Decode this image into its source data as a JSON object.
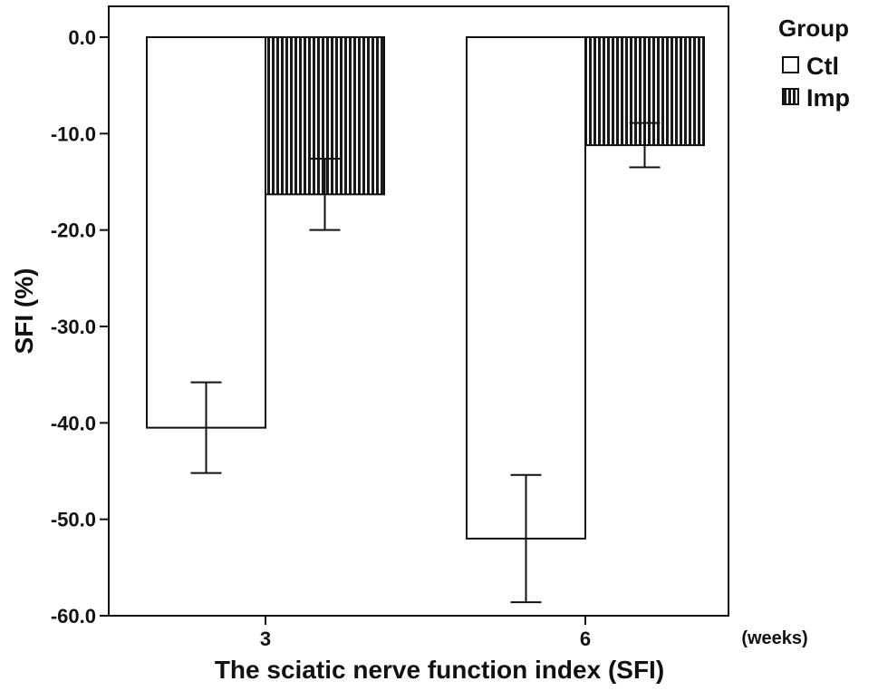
{
  "chart_data": {
    "type": "bar",
    "title": "",
    "xlabel": "The sciatic nerve function index (SFI)",
    "ylabel": "SFI (%)",
    "x_unit_label": "(weeks)",
    "categories": [
      "3",
      "6"
    ],
    "ylim": [
      -60,
      0
    ],
    "yticks": [
      0,
      -10,
      -20,
      -30,
      -40,
      -50,
      -60
    ],
    "ytick_labels": [
      "0.0",
      "-10.0",
      "-20.0",
      "-30.0",
      "-40.0",
      "-50.0",
      "-60.0"
    ],
    "grid": false,
    "legend_placement": "outside-top-right",
    "legend_title": "Group",
    "series": [
      {
        "name": "Ctl",
        "fill": "#ffffff",
        "pattern": "none",
        "values": [
          -40.5,
          -52.0
        ],
        "error_low": [
          -45.2,
          -58.6
        ],
        "error_high": [
          -35.8,
          -45.4
        ]
      },
      {
        "name": "Imp",
        "fill": "#1a1a1a",
        "pattern": "vertical-stripes",
        "values": [
          -16.3,
          -11.2
        ],
        "error_low": [
          -20.0,
          -13.5
        ],
        "error_high": [
          -12.6,
          -8.9
        ]
      }
    ]
  }
}
